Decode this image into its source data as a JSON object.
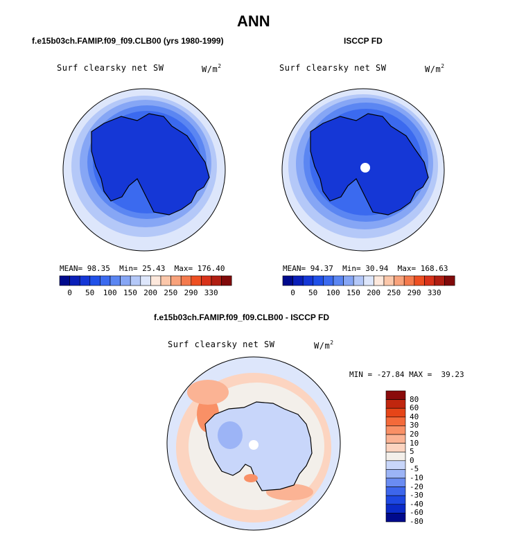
{
  "figure_title": "ANN",
  "panels": [
    {
      "case_title": "f.e15b03ch.FAMIP.f09_f09.CLB00 (yrs 1980-1999)",
      "variable": "Surf clearsky net SW",
      "units_base": "W/m",
      "units_exp": "2",
      "mean_label": "MEAN=",
      "mean_value": "98.35",
      "min_label": "Min=",
      "min_value": "25.43",
      "max_label": "Max=",
      "max_value": "176.40"
    },
    {
      "case_title": "ISCCP FD",
      "variable": "Surf clearsky net SW",
      "units_base": "W/m",
      "units_exp": "2",
      "mean_label": "MEAN=",
      "mean_value": "94.37",
      "min_label": "Min=",
      "min_value": "30.94",
      "max_label": "Max=",
      "max_value": "168.63"
    },
    {
      "case_title": "f.e15b03ch.FAMIP.f09_f09.CLB00 - ISCCP FD",
      "variable": "Surf clearsky net SW",
      "units_base": "W/m",
      "units_exp": "2",
      "minmax_text": "MIN = -27.84 MAX =  39.23"
    }
  ],
  "top_colorbar": {
    "colors": [
      "#000a8c",
      "#0a1fb8",
      "#1537d6",
      "#2050e8",
      "#3b6aef",
      "#5b86f2",
      "#86a6f5",
      "#b4c8f8",
      "#dde6fb",
      "#fde8dc",
      "#fbc7aa",
      "#f8a27b",
      "#f47a4d",
      "#ee4f22",
      "#d8321a",
      "#b01e12",
      "#800a0a"
    ],
    "tick_labels": [
      "0",
      "50",
      "100",
      "150",
      "200",
      "250",
      "290",
      "330"
    ]
  },
  "diff_colorbar": {
    "colors": [
      "#000a8c",
      "#0b2bc8",
      "#1e48e2",
      "#3d66ec",
      "#6a8cf2",
      "#9cb4f6",
      "#c8d6fa",
      "#f3efea",
      "#fcd4c0",
      "#fbb394",
      "#f99066",
      "#f46a3a",
      "#e64518",
      "#c0260e",
      "#8a0b0b"
    ],
    "tick_labels": [
      "80",
      "60",
      "40",
      "30",
      "20",
      "10",
      "5",
      "0",
      "-5",
      "-10",
      "-20",
      "-30",
      "-40",
      "-60",
      "-80"
    ]
  }
}
